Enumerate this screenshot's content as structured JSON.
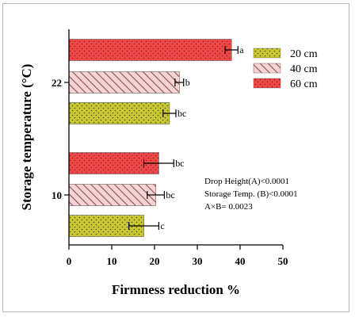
{
  "chart_data": {
    "type": "bar",
    "orientation": "horizontal",
    "xlabel": "Firmness reduction %",
    "ylabel": "Storage temperature (°C)",
    "xlim": [
      0,
      50
    ],
    "xticks": [
      "0",
      "10",
      "20",
      "30",
      "40",
      "50"
    ],
    "categories": [
      "22",
      "10"
    ],
    "series": [
      {
        "name": "20 cm",
        "color": "#c8c832",
        "pattern": "dots",
        "values": [
          23.5,
          17.5
        ],
        "errors": [
          1.5,
          3.5
        ],
        "letters": [
          "bc",
          "c"
        ]
      },
      {
        "name": "40 cm",
        "color": "#f2c4c4",
        "pattern": "hatch",
        "values": [
          25.8,
          20.3
        ],
        "errors": [
          1.0,
          2.0
        ],
        "letters": [
          "b",
          "bc"
        ]
      },
      {
        "name": "60 cm",
        "color": "#f04848",
        "pattern": "dots",
        "values": [
          38.0,
          21.0
        ],
        "errors": [
          1.5,
          3.5
        ],
        "letters": [
          "a",
          "bc"
        ]
      }
    ],
    "legend_position": "top-right",
    "annotations": [
      "Drop Height(A)<0.0001",
      "Storage Temp. (B)<0.0001",
      "A×B= 0.0023"
    ],
    "grid": false
  }
}
